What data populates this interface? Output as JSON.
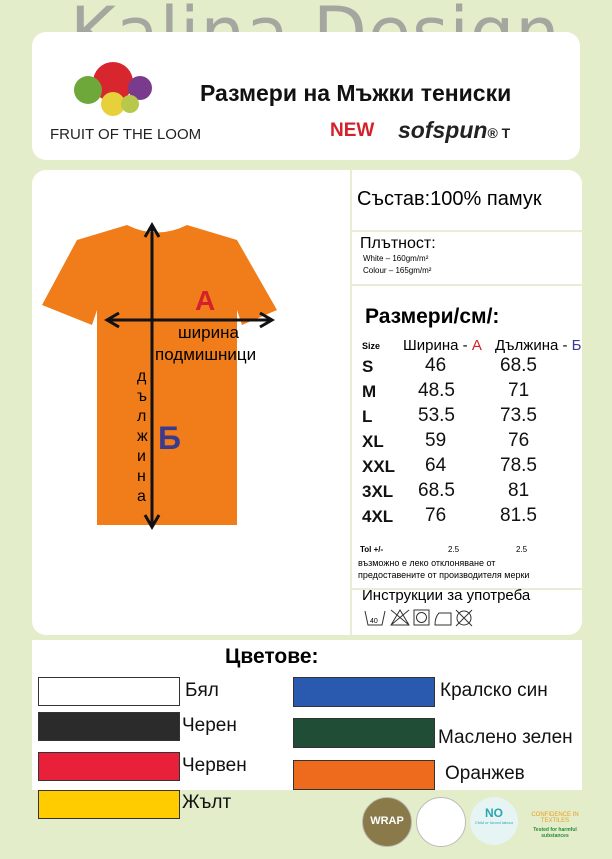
{
  "header": {
    "watermark": "Kalina Design",
    "brand": "FRUIT OF THE LOOM",
    "title": "Размери на Мъжки тениски",
    "new": "NEW",
    "product": "sofspun",
    "product_suffix": "® T"
  },
  "shirt": {
    "color": "#f07d1a",
    "label_a": "A",
    "label_b": "Б",
    "width_label": "ширина",
    "width_label2": "подмишници",
    "length_label": [
      "д",
      "ъ",
      "л",
      "ж",
      "и",
      "н",
      "а"
    ]
  },
  "composition": "Състав:100% памук",
  "density": {
    "title": "Плътност:",
    "white": "White – 160gm/m²",
    "colour": "Colour – 165gm/m²"
  },
  "sizes": {
    "title": "Размери/см/:",
    "col_size": "Size",
    "col_width": "Ширина - ",
    "col_width_letter": "А",
    "col_length": "Дължина - ",
    "col_length_letter": "Б",
    "rows": [
      {
        "size": "S",
        "width": "46",
        "length": "68.5"
      },
      {
        "size": "M",
        "width": "48.5",
        "length": "71"
      },
      {
        "size": "L",
        "width": "53.5",
        "length": "73.5"
      },
      {
        "size": "XL",
        "width": "59",
        "length": "76"
      },
      {
        "size": "XXL",
        "width": "64",
        "length": "78.5"
      },
      {
        "size": "3XL",
        "width": "68.5",
        "length": "81"
      },
      {
        "size": "4XL",
        "width": "76",
        "length": "81.5"
      }
    ],
    "tol_label": "Tol +/-",
    "tol_width": "2.5",
    "tol_length": "2.5",
    "note1": "възможно е леко отклоняване от",
    "note2": "предоставените от производителя мерки"
  },
  "care": {
    "title": "Инструкции за употреба",
    "wash": "40"
  },
  "colors": {
    "title": "Цветове:",
    "items": [
      {
        "name": "Бял",
        "hex": "#ffffff"
      },
      {
        "name": "Черен",
        "hex": "#2b2b2b"
      },
      {
        "name": "Червен",
        "hex": "#e8203a"
      },
      {
        "name": "Жълт",
        "hex": "#ffcc00"
      },
      {
        "name": "Кралско син",
        "hex": "#2a5ab0"
      },
      {
        "name": "Маслено зелен",
        "hex": "#1f4d35"
      },
      {
        "name": "Оранжев",
        "hex": "#ee6a1c"
      }
    ]
  },
  "logos": {
    "wrap": "WRAP",
    "no": "NO",
    "no_sub": "Child or forced labour",
    "oeko": "CONFIDENCE IN TEXTILES",
    "oeko_sub": "Tested for harmful substances"
  }
}
